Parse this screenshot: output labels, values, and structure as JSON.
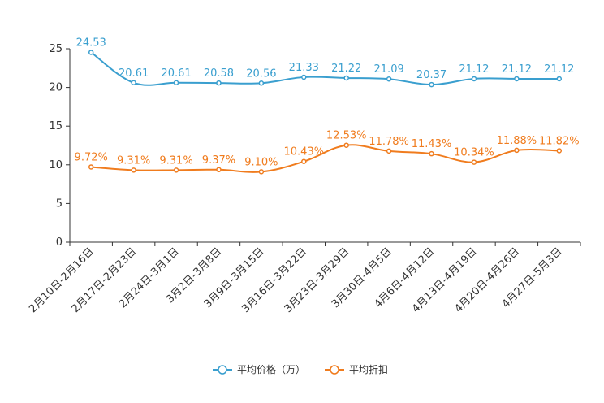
{
  "chart_data": {
    "type": "line",
    "title": "",
    "xlabel": "",
    "ylabel": "",
    "ylim": [
      0,
      25
    ],
    "yticks": [
      0,
      5,
      10,
      15,
      20,
      25
    ],
    "grid": false,
    "legend_position": "bottom-center",
    "categories": [
      "2月10日-2月16日",
      "2月17日-2月23日",
      "2月24日-3月1日",
      "3月2日-3月8日",
      "3月9日-3月15日",
      "3月16日-3月22日",
      "3月23日-3月29日",
      "3月30日-4月5日",
      "4月6日-4月12日",
      "4月13日-4月19日",
      "4月20日-4月26日",
      "4月27日-5月3日"
    ],
    "series": [
      {
        "name": "平均价格（万）",
        "color": "#3a9fcf",
        "values": [
          24.53,
          20.61,
          20.61,
          20.58,
          20.56,
          21.33,
          21.22,
          21.09,
          20.37,
          21.12,
          21.12,
          21.12
        ],
        "labels": [
          "24.53",
          "20.61",
          "20.61",
          "20.58",
          "20.56",
          "21.33",
          "21.22",
          "21.09",
          "20.37",
          "21.12",
          "21.12",
          "21.12"
        ]
      },
      {
        "name": "平均折扣",
        "color": "#f07c1e",
        "values": [
          9.72,
          9.31,
          9.31,
          9.37,
          9.1,
          10.43,
          12.53,
          11.78,
          11.43,
          10.34,
          11.88,
          11.82
        ],
        "labels": [
          "9.72%",
          "9.31%",
          "9.31%",
          "9.37%",
          "9.10%",
          "10.43%",
          "12.53%",
          "11.78%",
          "11.43%",
          "10.34%",
          "11.88%",
          "11.82%"
        ]
      }
    ]
  }
}
